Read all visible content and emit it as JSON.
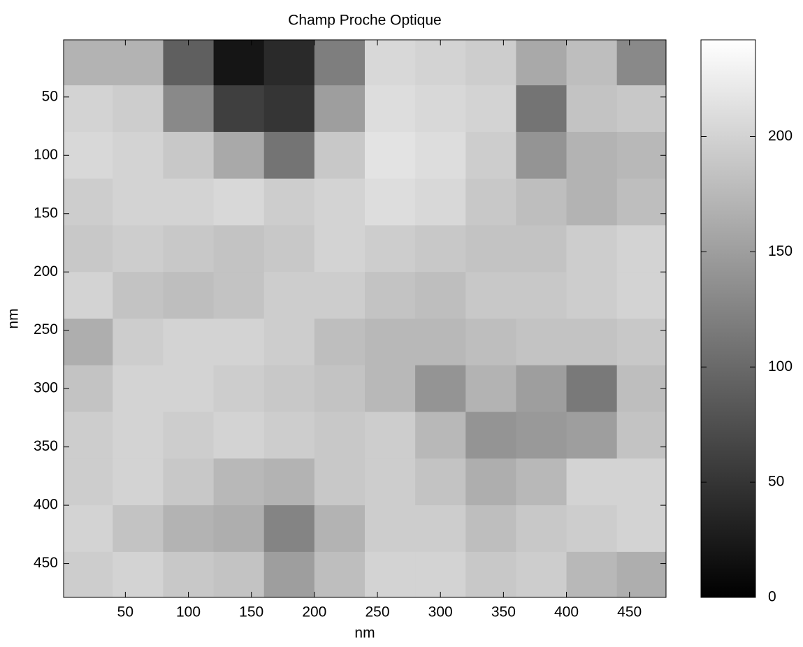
{
  "chart_data": {
    "type": "heatmap",
    "title": "Champ Proche Optique",
    "x_label": "nm",
    "y_label": "nm",
    "x": [
      20,
      60,
      100,
      140,
      180,
      220,
      260,
      300,
      340,
      380,
      420,
      460
    ],
    "y": [
      20,
      60,
      100,
      140,
      180,
      220,
      260,
      300,
      340,
      380,
      420,
      460
    ],
    "z": [
      [
        170,
        170,
        90,
        20,
        40,
        120,
        205,
        200,
        195,
        160,
        180,
        130
      ],
      [
        200,
        195,
        130,
        60,
        50,
        150,
        210,
        205,
        200,
        110,
        185,
        190
      ],
      [
        205,
        200,
        190,
        160,
        110,
        190,
        215,
        210,
        195,
        140,
        170,
        175
      ],
      [
        195,
        200,
        200,
        205,
        195,
        200,
        210,
        205,
        190,
        180,
        170,
        180
      ],
      [
        190,
        195,
        190,
        185,
        190,
        200,
        195,
        190,
        185,
        185,
        195,
        200
      ],
      [
        200,
        185,
        180,
        185,
        195,
        195,
        185,
        180,
        190,
        190,
        195,
        200
      ],
      [
        165,
        195,
        200,
        200,
        195,
        180,
        175,
        175,
        180,
        185,
        185,
        190
      ],
      [
        185,
        200,
        200,
        195,
        190,
        185,
        175,
        140,
        170,
        150,
        115,
        180
      ],
      [
        195,
        200,
        195,
        200,
        195,
        190,
        195,
        175,
        140,
        145,
        150,
        185
      ],
      [
        195,
        200,
        190,
        175,
        170,
        190,
        195,
        185,
        165,
        175,
        200,
        200
      ],
      [
        200,
        185,
        170,
        165,
        125,
        170,
        195,
        195,
        180,
        190,
        195,
        200
      ],
      [
        195,
        200,
        190,
        185,
        150,
        180,
        200,
        200,
        190,
        195,
        175,
        165
      ]
    ],
    "colormap": "gray",
    "xlim": [
      1,
      479
    ],
    "ylim": [
      1,
      479
    ],
    "y_inverted": true,
    "xticks": [
      50,
      100,
      150,
      200,
      250,
      300,
      350,
      400,
      450
    ],
    "yticks": [
      50,
      100,
      150,
      200,
      250,
      300,
      350,
      400,
      450
    ],
    "clim": [
      0,
      242
    ],
    "cticks": [
      0,
      50,
      100,
      150,
      200
    ]
  }
}
